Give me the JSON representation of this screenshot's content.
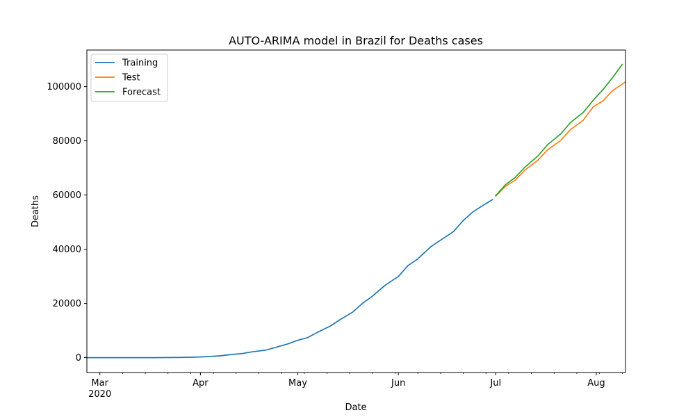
{
  "chart_data": {
    "type": "line",
    "title": "AUTO-ARIMA model in Brazil for Deaths cases",
    "xlabel": "Date",
    "ylabel": "Deaths",
    "x_range": [
      "2020-02-26",
      "2020-08-10"
    ],
    "ylim": [
      -5500,
      113500
    ],
    "grid": false,
    "legend_position": "top-left",
    "x_ticks": [
      {
        "date": "2020-03-01",
        "label": "Mar",
        "sublabel": "2020"
      },
      {
        "date": "2020-04-01",
        "label": "Apr",
        "sublabel": ""
      },
      {
        "date": "2020-05-01",
        "label": "May",
        "sublabel": ""
      },
      {
        "date": "2020-06-01",
        "label": "Jun",
        "sublabel": ""
      },
      {
        "date": "2020-07-01",
        "label": "Jul",
        "sublabel": ""
      },
      {
        "date": "2020-08-01",
        "label": "Aug",
        "sublabel": ""
      }
    ],
    "y_ticks": [
      0,
      20000,
      40000,
      60000,
      80000,
      100000
    ],
    "series": [
      {
        "name": "Training",
        "color": "#1f77b4",
        "points": [
          [
            "2020-02-26",
            0
          ],
          [
            "2020-03-10",
            0
          ],
          [
            "2020-03-17",
            1
          ],
          [
            "2020-03-20",
            11
          ],
          [
            "2020-03-24",
            46
          ],
          [
            "2020-03-28",
            111
          ],
          [
            "2020-04-01",
            240
          ],
          [
            "2020-04-04",
            432
          ],
          [
            "2020-04-07",
            667
          ],
          [
            "2020-04-10",
            1056
          ],
          [
            "2020-04-14",
            1532
          ],
          [
            "2020-04-17",
            2141
          ],
          [
            "2020-04-21",
            2741
          ],
          [
            "2020-04-24",
            3704
          ],
          [
            "2020-04-28",
            5083
          ],
          [
            "2020-05-01",
            6412
          ],
          [
            "2020-05-04",
            7367
          ],
          [
            "2020-05-08",
            9897
          ],
          [
            "2020-05-11",
            11653
          ],
          [
            "2020-05-14",
            13993
          ],
          [
            "2020-05-18",
            16853
          ],
          [
            "2020-05-21",
            20082
          ],
          [
            "2020-05-24",
            22666
          ],
          [
            "2020-05-28",
            26764
          ],
          [
            "2020-06-01",
            29937
          ],
          [
            "2020-06-04",
            34021
          ],
          [
            "2020-06-07",
            36455
          ],
          [
            "2020-06-11",
            40919
          ],
          [
            "2020-06-14",
            43332
          ],
          [
            "2020-06-18",
            46510
          ],
          [
            "2020-06-21",
            50617
          ],
          [
            "2020-06-24",
            53830
          ],
          [
            "2020-06-27",
            56109
          ],
          [
            "2020-06-30",
            58314
          ]
        ]
      },
      {
        "name": "Test",
        "color": "#ff7f0e",
        "points": [
          [
            "2020-07-01",
            59594
          ],
          [
            "2020-07-04",
            63174
          ],
          [
            "2020-07-07",
            65487
          ],
          [
            "2020-07-10",
            69184
          ],
          [
            "2020-07-14",
            72833
          ],
          [
            "2020-07-17",
            76688
          ],
          [
            "2020-07-21",
            80120
          ],
          [
            "2020-07-24",
            84082
          ],
          [
            "2020-07-28",
            87618
          ],
          [
            "2020-07-31",
            92475
          ],
          [
            "2020-08-03",
            94665
          ],
          [
            "2020-08-06",
            98493
          ],
          [
            "2020-08-10",
            101752
          ]
        ]
      },
      {
        "name": "Forecast",
        "color": "#2ca02c",
        "points": [
          [
            "2020-07-01",
            59800
          ],
          [
            "2020-07-04",
            63800
          ],
          [
            "2020-07-07",
            66500
          ],
          [
            "2020-07-10",
            70300
          ],
          [
            "2020-07-14",
            74400
          ],
          [
            "2020-07-17",
            78600
          ],
          [
            "2020-07-21",
            82500
          ],
          [
            "2020-07-24",
            86700
          ],
          [
            "2020-07-28",
            90500
          ],
          [
            "2020-07-31",
            94900
          ],
          [
            "2020-08-03",
            98800
          ],
          [
            "2020-08-06",
            103300
          ],
          [
            "2020-08-09",
            108200
          ]
        ]
      }
    ]
  }
}
